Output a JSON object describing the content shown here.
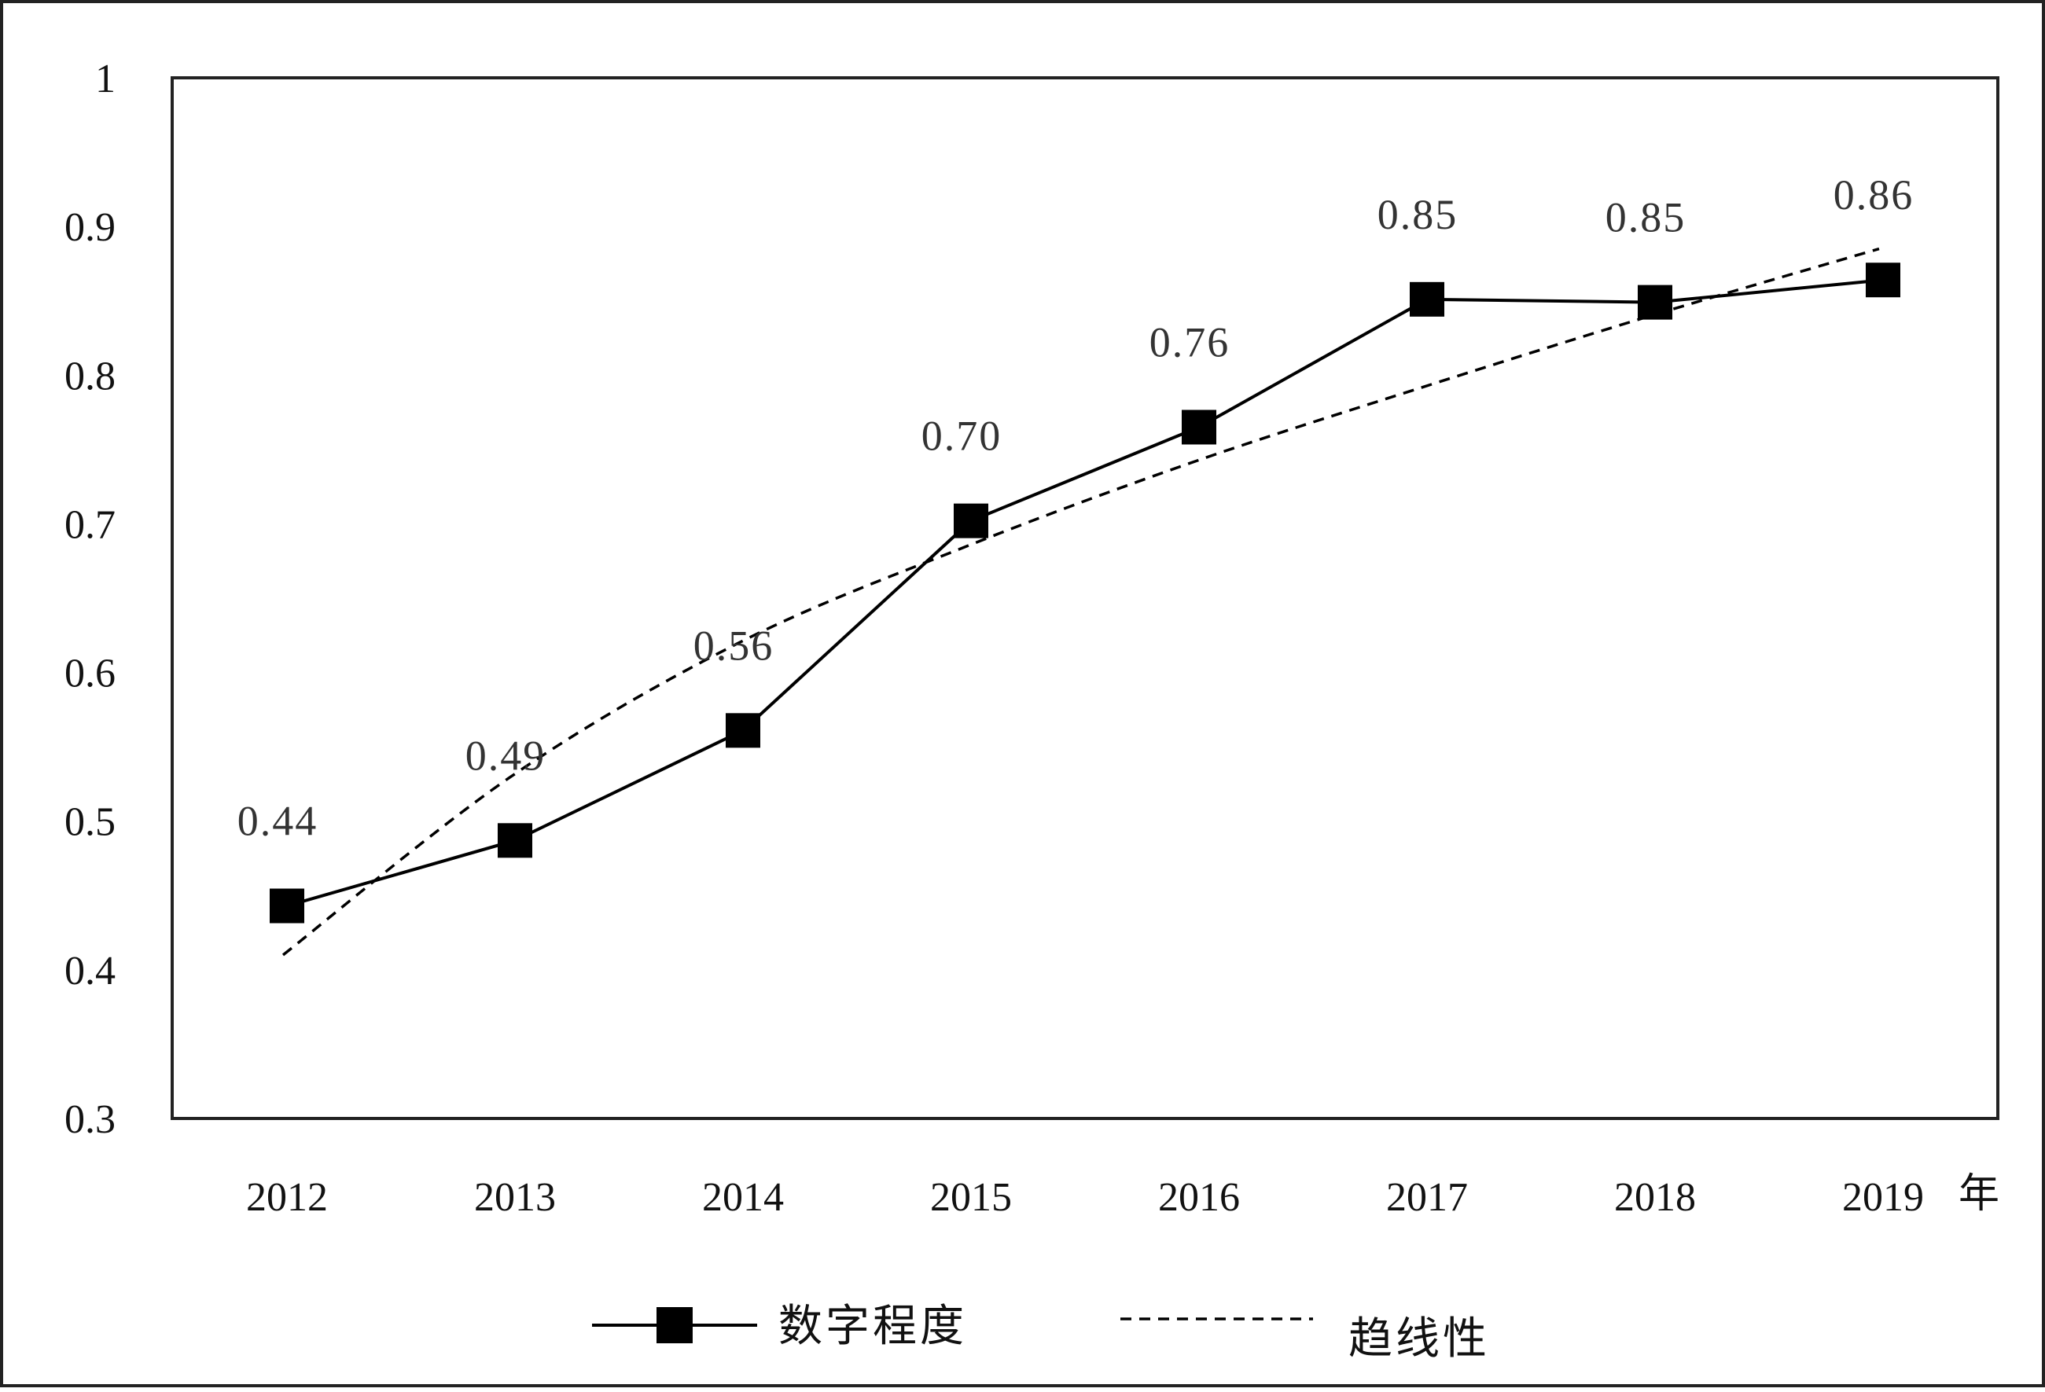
{
  "chart_data": {
    "type": "line",
    "x_unit_label": "年",
    "categories": [
      "2012",
      "2013",
      "2014",
      "2015",
      "2016",
      "2017",
      "2018",
      "2019"
    ],
    "ylim": [
      0.3,
      1.0
    ],
    "y_ticks": [
      "0.3",
      "0.4",
      "0.5",
      "0.6",
      "0.7",
      "0.8",
      "0.9",
      "1"
    ],
    "grid": false,
    "legend_position": "bottom",
    "series": [
      {
        "name": "数字程度",
        "style": "solid",
        "marker": "square",
        "color": "#000000",
        "values": [
          0.443,
          0.487,
          0.561,
          0.702,
          0.765,
          0.851,
          0.849,
          0.864
        ],
        "labels": [
          "0.44",
          "0.49",
          "0.56",
          "0.70",
          "0.76",
          "0.85",
          "0.85",
          "0.86"
        ]
      },
      {
        "name": "趋线性",
        "style": "dashed",
        "color": "#000000",
        "values": [
          0.41,
          0.53,
          0.62,
          0.685,
          0.742,
          0.792,
          0.84,
          0.885
        ]
      }
    ]
  }
}
